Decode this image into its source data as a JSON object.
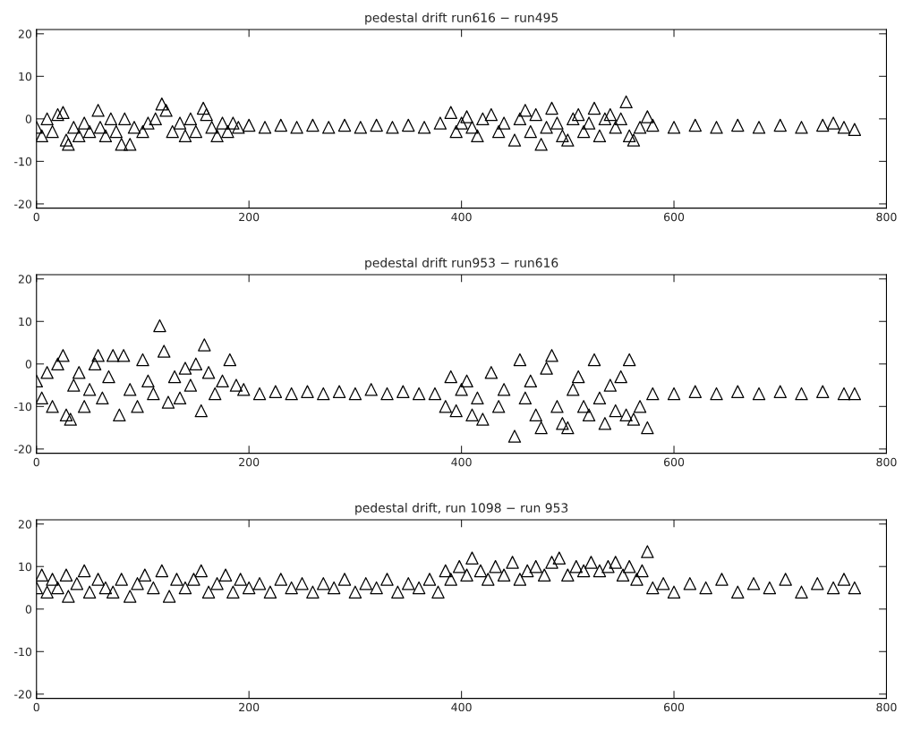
{
  "chart_data": [
    {
      "type": "scatter",
      "title": "pedestal drift run616 − run495",
      "xlim": [
        0,
        800
      ],
      "xticks": [
        0,
        200,
        400,
        600,
        800
      ],
      "ylim": [
        -21,
        21
      ],
      "yticks": [
        -20,
        -10,
        0,
        10,
        20
      ],
      "marker": "triangle",
      "grid": false,
      "series": [
        {
          "color": "#000000",
          "x": [
            0,
            5,
            10,
            15,
            20,
            25,
            28,
            30,
            35,
            40,
            45,
            50,
            58,
            60,
            65,
            70,
            75,
            80,
            83,
            88,
            92,
            100,
            105,
            112,
            118,
            122,
            128,
            135,
            140,
            145,
            150,
            157,
            160,
            165,
            170,
            175,
            180,
            185,
            190,
            200,
            215,
            230,
            245,
            260,
            275,
            290,
            305,
            320,
            335,
            350,
            365,
            380,
            390,
            395,
            400,
            405,
            410,
            415,
            420,
            428,
            435,
            440,
            450,
            455,
            460,
            465,
            470,
            475,
            480,
            485,
            490,
            495,
            500,
            505,
            510,
            515,
            520,
            525,
            530,
            535,
            540,
            545,
            550,
            555,
            558,
            562,
            568,
            575,
            580,
            600,
            620,
            640,
            660,
            680,
            700,
            720,
            740,
            750,
            760,
            770
          ],
          "values": [
            -2,
            -4,
            0,
            -3,
            1,
            1.5,
            -5,
            -6,
            -2,
            -4,
            -1,
            -3,
            2,
            -2,
            -4,
            0,
            -3,
            -6,
            0,
            -6,
            -2,
            -3,
            -1,
            0,
            3.5,
            2,
            -3,
            -1,
            -4,
            0,
            -3,
            2.5,
            1,
            -2,
            -4,
            -1,
            -3,
            -1,
            -2,
            -1.5,
            -2,
            -1.5,
            -2,
            -1.5,
            -2,
            -1.5,
            -2,
            -1.5,
            -2,
            -1.5,
            -2,
            -1,
            1.5,
            -3,
            -1,
            0.5,
            -2,
            -4,
            0,
            1,
            -3,
            -1,
            -5,
            0,
            2,
            -3,
            1,
            -6,
            -2,
            2.5,
            -1,
            -4,
            -5,
            0,
            1,
            -3,
            -1,
            2.5,
            -4,
            0,
            1,
            -2,
            0,
            4,
            -4,
            -5,
            -2,
            0.5,
            -1.5,
            -2,
            -1.5,
            -2,
            -1.5,
            -2,
            -1.5,
            -2,
            -1.5,
            -1,
            -2,
            -2.5
          ]
        }
      ]
    },
    {
      "type": "scatter",
      "title": "pedestal drift run953 − run616",
      "xlim": [
        0,
        800
      ],
      "xticks": [
        0,
        200,
        400,
        600,
        800
      ],
      "ylim": [
        -21,
        21
      ],
      "yticks": [
        -20,
        -10,
        0,
        10,
        20
      ],
      "marker": "triangle",
      "grid": false,
      "series": [
        {
          "color": "#000000",
          "x": [
            0,
            5,
            10,
            15,
            20,
            25,
            28,
            32,
            35,
            40,
            45,
            50,
            55,
            58,
            62,
            68,
            72,
            78,
            82,
            88,
            95,
            100,
            105,
            110,
            116,
            120,
            124,
            130,
            135,
            140,
            145,
            150,
            155,
            158,
            162,
            168,
            175,
            182,
            188,
            195,
            210,
            225,
            240,
            255,
            270,
            285,
            300,
            315,
            330,
            345,
            360,
            375,
            385,
            390,
            395,
            400,
            405,
            410,
            415,
            420,
            428,
            435,
            440,
            450,
            455,
            460,
            465,
            470,
            475,
            480,
            485,
            490,
            495,
            500,
            505,
            510,
            515,
            520,
            525,
            530,
            535,
            540,
            545,
            550,
            555,
            558,
            562,
            568,
            575,
            580,
            600,
            620,
            640,
            660,
            680,
            700,
            720,
            740,
            760,
            770
          ],
          "values": [
            -4,
            -8,
            -2,
            -10,
            0,
            2,
            -12,
            -13,
            -5,
            -2,
            -10,
            -6,
            0,
            2,
            -8,
            -3,
            2,
            -12,
            2,
            -6,
            -10,
            1,
            -4,
            -7,
            9,
            3,
            -9,
            -3,
            -8,
            -1,
            -5,
            0,
            -11,
            4.5,
            -2,
            -7,
            -4,
            1,
            -5,
            -6,
            -7,
            -6.5,
            -7,
            -6.5,
            -7,
            -6.5,
            -7,
            -6,
            -7,
            -6.5,
            -7,
            -7,
            -10,
            -3,
            -11,
            -6,
            -4,
            -12,
            -8,
            -13,
            -2,
            -10,
            -6,
            -17,
            1,
            -8,
            -4,
            -12,
            -15,
            -1,
            2,
            -10,
            -14,
            -15,
            -6,
            -3,
            -10,
            -12,
            1,
            -8,
            -14,
            -5,
            -11,
            -3,
            -12,
            1,
            -13,
            -10,
            -15,
            -7,
            -7,
            -6.5,
            -7,
            -6.5,
            -7,
            -6.5,
            -7,
            -6.5,
            -7,
            -7
          ]
        }
      ]
    },
    {
      "type": "scatter",
      "title": "pedestal drift, run 1098 − run 953",
      "xlim": [
        0,
        800
      ],
      "xticks": [
        0,
        200,
        400,
        600,
        800
      ],
      "ylim": [
        -21,
        21
      ],
      "yticks": [
        -20,
        -10,
        0,
        10,
        20
      ],
      "marker": "triangle",
      "grid": false,
      "series": [
        {
          "color": "#000000",
          "x": [
            0,
            5,
            10,
            15,
            20,
            28,
            30,
            38,
            45,
            50,
            58,
            65,
            72,
            80,
            88,
            95,
            102,
            110,
            118,
            125,
            132,
            140,
            148,
            155,
            162,
            170,
            178,
            185,
            192,
            200,
            210,
            220,
            230,
            240,
            250,
            260,
            270,
            280,
            290,
            300,
            310,
            320,
            330,
            340,
            350,
            360,
            370,
            378,
            385,
            390,
            398,
            405,
            410,
            418,
            425,
            432,
            440,
            448,
            455,
            462,
            470,
            478,
            485,
            492,
            500,
            508,
            515,
            522,
            530,
            538,
            545,
            552,
            558,
            565,
            570,
            575,
            580,
            590,
            600,
            615,
            630,
            645,
            660,
            675,
            690,
            705,
            720,
            735,
            750,
            760,
            770
          ],
          "values": [
            5,
            8,
            4,
            7,
            5,
            8,
            3,
            6,
            9,
            4,
            7,
            5,
            4,
            7,
            3,
            6,
            8,
            5,
            9,
            3,
            7,
            5,
            7,
            9,
            4,
            6,
            8,
            4,
            7,
            5,
            6,
            4,
            7,
            5,
            6,
            4,
            6,
            5,
            7,
            4,
            6,
            5,
            7,
            4,
            6,
            5,
            7,
            4,
            9,
            7,
            10,
            8,
            12,
            9,
            7,
            10,
            8,
            11,
            7,
            9,
            10,
            8,
            11,
            12,
            8,
            10,
            9,
            11,
            9,
            10,
            11,
            8,
            10,
            7,
            9,
            13.5,
            5,
            6,
            4,
            6,
            5,
            7,
            4,
            6,
            5,
            7,
            4,
            6,
            5,
            7,
            5
          ]
        }
      ]
    }
  ]
}
